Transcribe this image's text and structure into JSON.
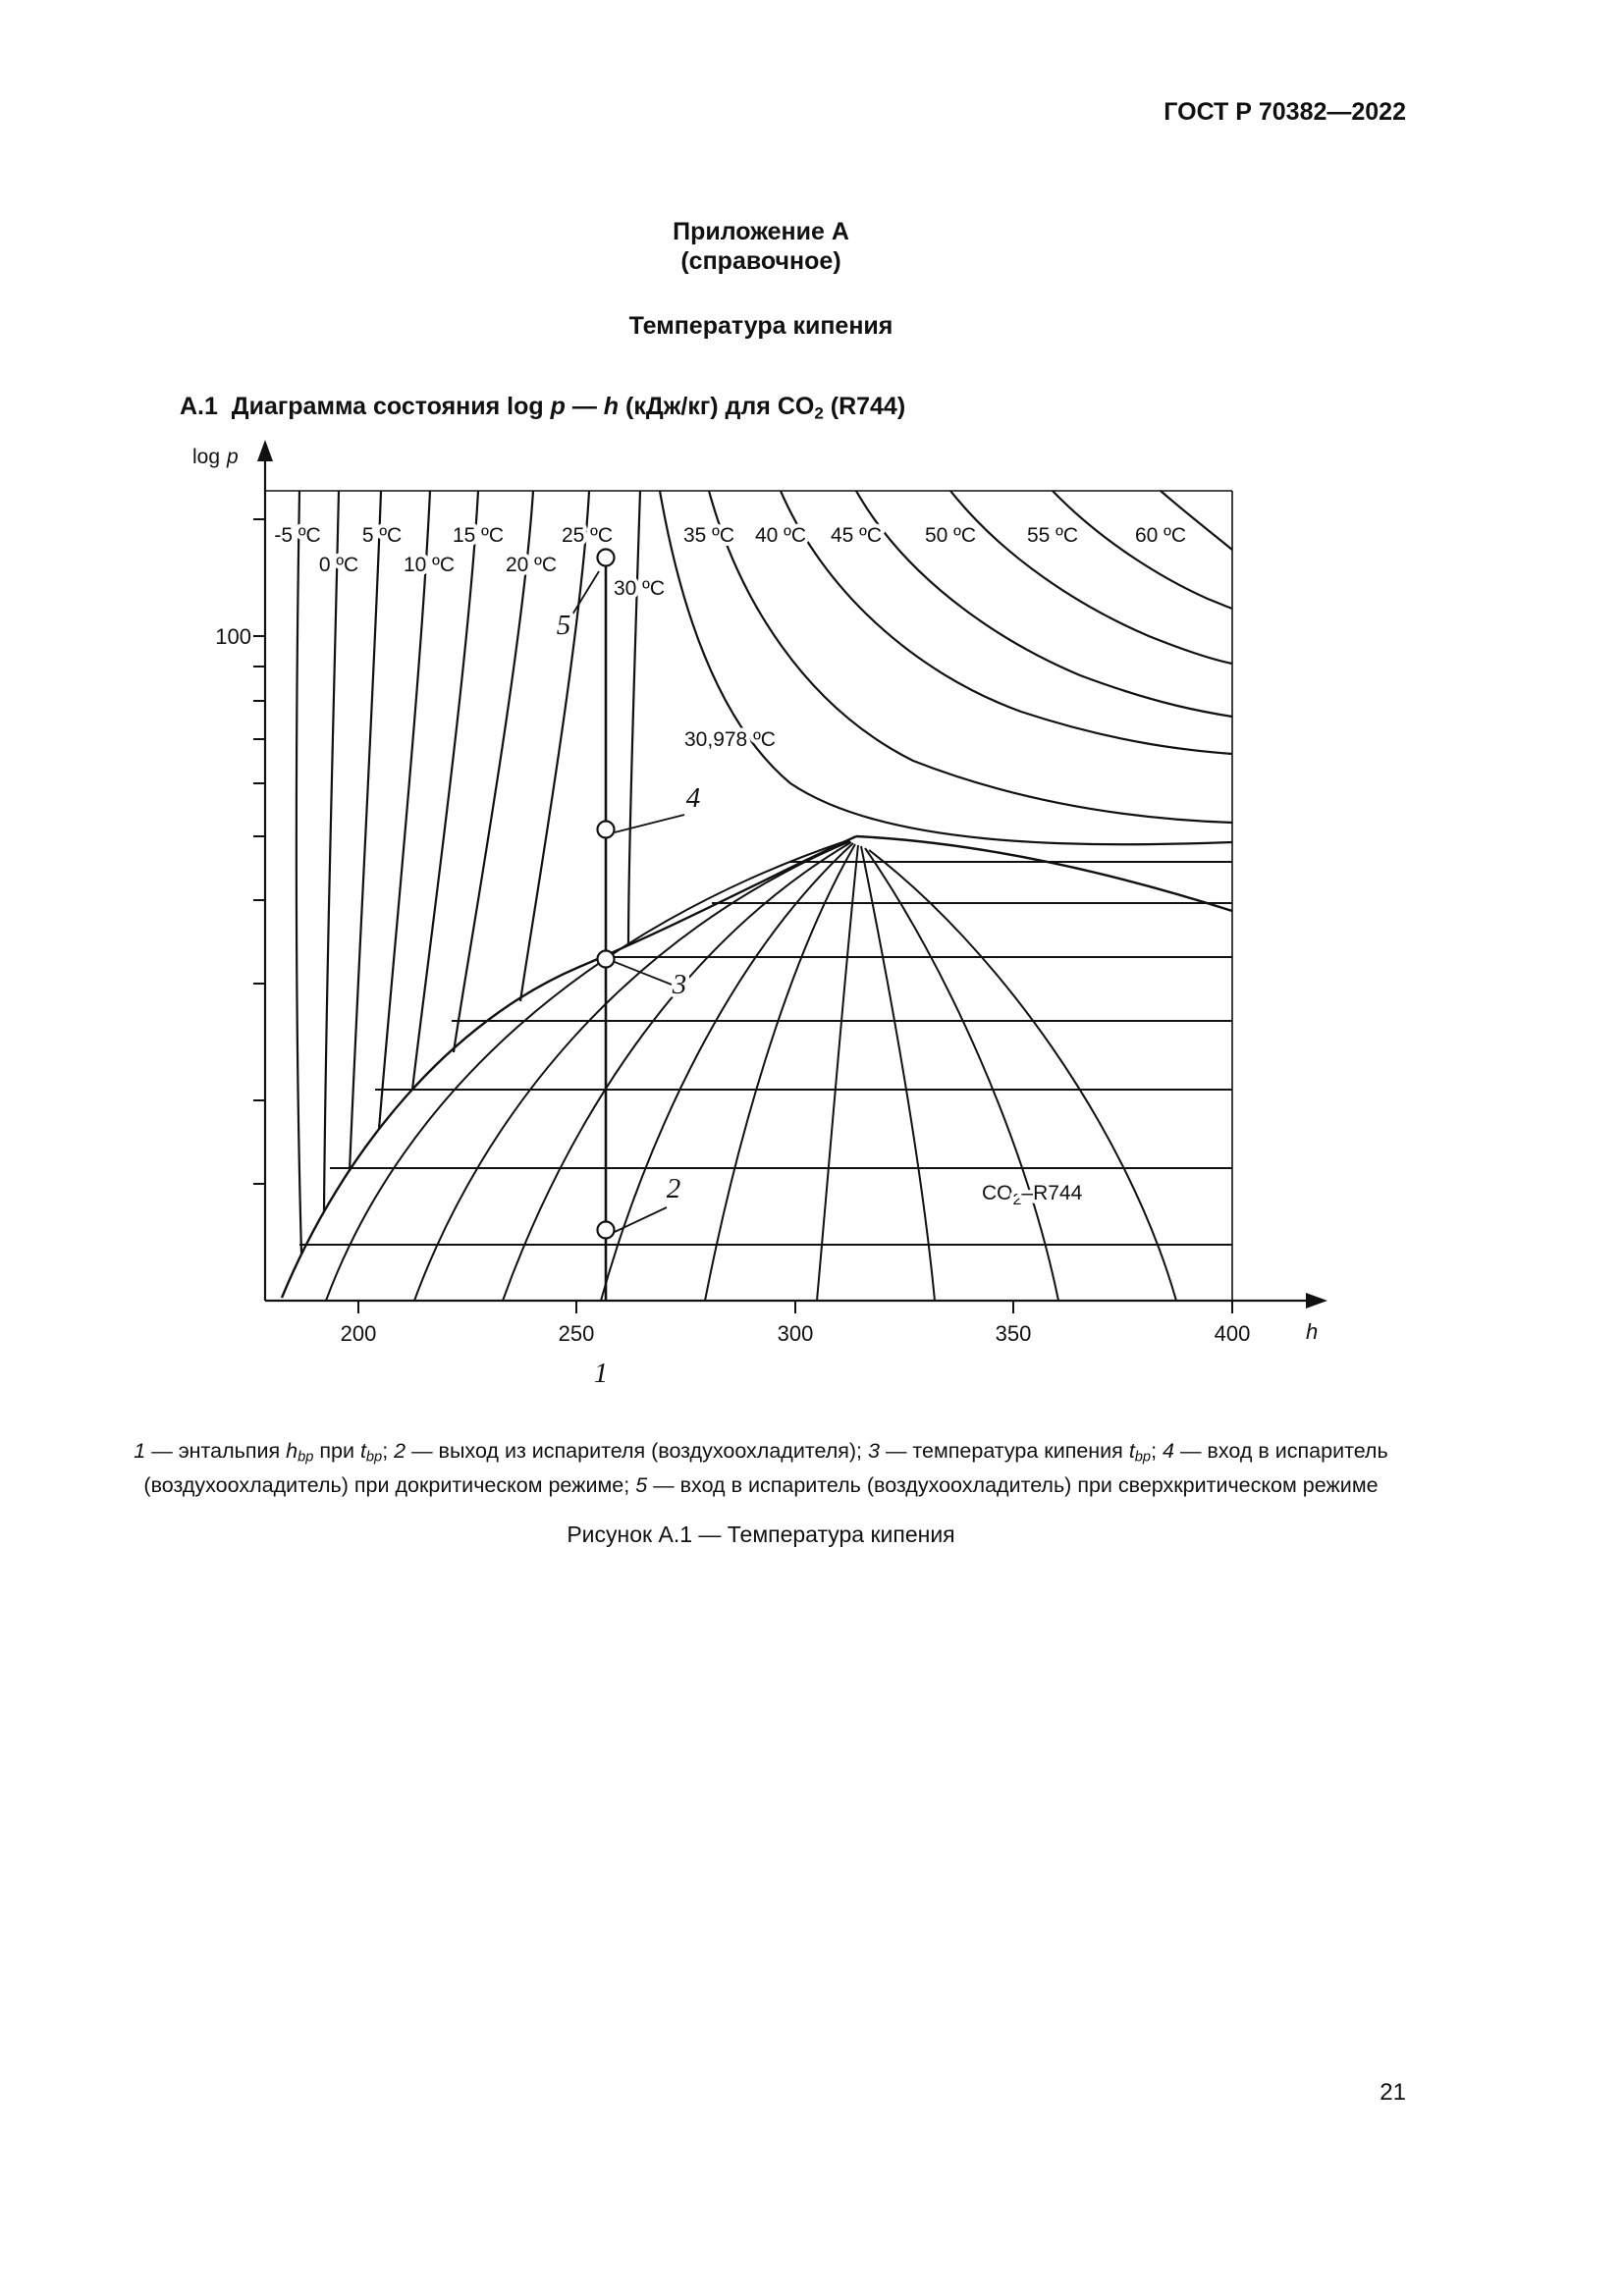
{
  "page": {
    "header": "ГОСТ Р 70382—2022",
    "page_number": "21"
  },
  "appendix": {
    "title": "Приложение А",
    "subtitle": "(справочное)",
    "section_title": "Температура кипения"
  },
  "figure_heading": {
    "segments": [
      {
        "t": "А.1  Диаграмма состояния log "
      },
      {
        "t": "p",
        "s": "i"
      },
      {
        "t": " — "
      },
      {
        "t": "h",
        "s": "i"
      },
      {
        "t": " (кДж/кг) для CO"
      },
      {
        "t": "2",
        "s": "sub"
      },
      {
        "t": " (R744)"
      }
    ]
  },
  "chart": {
    "y_axis_label_prefix": "log",
    "y_axis_label_var": "p",
    "y_tick": "100",
    "x_ticks": [
      "200",
      "250",
      "300",
      "350",
      "400"
    ],
    "x_axis_label": "h",
    "isotherms": [
      "-5 ºC",
      "0 ºC",
      "5 ºC",
      "10 ºC",
      "15 ºC",
      "20 ºC",
      "25 ºC",
      "30 ºC",
      "35 ºC",
      "40 ºC",
      "45 ºC",
      "50 ºC",
      "55 ºC",
      "60 ºC"
    ],
    "critical_isotherm": "30,978 ºC",
    "substance_label": {
      "co": "CO",
      "sub": "2",
      "rest": "–R744"
    },
    "points": [
      "1",
      "2",
      "3",
      "4",
      "5"
    ]
  },
  "caption": {
    "segments": [
      {
        "t": "1",
        "s": "i"
      },
      {
        "t": " — энтальпия "
      },
      {
        "t": "h",
        "s": "i"
      },
      {
        "t": "bp",
        "s": "isub"
      },
      {
        "t": " при "
      },
      {
        "t": "t",
        "s": "i"
      },
      {
        "t": "bp",
        "s": "isub"
      },
      {
        "t": "; "
      },
      {
        "t": "2",
        "s": "i"
      },
      {
        "t": " — выход из испарителя (воздухоохладителя); "
      },
      {
        "t": "3",
        "s": "i"
      },
      {
        "t": " — температура кипения "
      },
      {
        "t": "t",
        "s": "i"
      },
      {
        "t": "bp",
        "s": "isub"
      },
      {
        "t": "; "
      },
      {
        "t": "4",
        "s": "i"
      },
      {
        "t": " — вход в испаритель (воздухоохладитель) при докритическом режиме; "
      },
      {
        "t": "5",
        "s": "i"
      },
      {
        "t": " — вход в испаритель (воздухоохладитель) при сверхкритическом режиме"
      }
    ]
  },
  "figure_caption": "Рисунок А.1 — Температура кипения"
}
